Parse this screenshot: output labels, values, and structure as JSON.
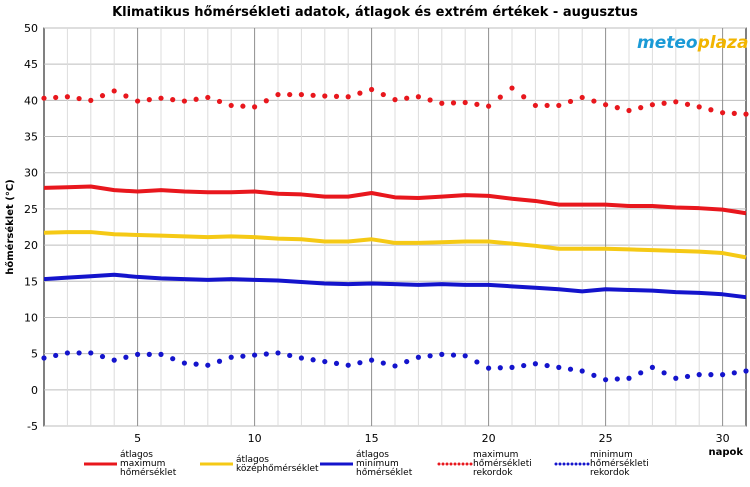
{
  "chart_data": {
    "type": "line",
    "title": "Klimatikus hőmérsékleti adatok, átlagok és extrém értékek - augusztus",
    "xlabel": "napok",
    "ylabel": "hőmérséklet (°C)",
    "xlim": [
      1,
      31
    ],
    "ylim": [
      -5,
      50
    ],
    "xticks": [
      5,
      10,
      15,
      20,
      25,
      30
    ],
    "yticks": [
      -5,
      0,
      5,
      10,
      15,
      20,
      25,
      30,
      35,
      40,
      45,
      50
    ],
    "grid": true,
    "legend_position": "bottom",
    "x": [
      1,
      2,
      3,
      4,
      5,
      6,
      7,
      8,
      9,
      10,
      11,
      12,
      13,
      14,
      15,
      16,
      17,
      18,
      19,
      20,
      21,
      22,
      23,
      24,
      25,
      26,
      27,
      28,
      29,
      30,
      31
    ],
    "series": [
      {
        "name": "átlagos maximum hőmérséklet",
        "legend_lines": [
          "átlagos",
          "maximum",
          "hőmérséklet"
        ],
        "style": "solid",
        "color": "#e8171d",
        "values": [
          27.9,
          28.0,
          28.1,
          27.6,
          27.4,
          27.6,
          27.4,
          27.3,
          27.3,
          27.4,
          27.1,
          27.0,
          26.7,
          26.7,
          27.2,
          26.6,
          26.5,
          26.7,
          26.9,
          26.8,
          26.4,
          26.1,
          25.6,
          25.6,
          25.6,
          25.4,
          25.4,
          25.2,
          25.1,
          24.9,
          24.4
        ]
      },
      {
        "name": "átlagos középhőmérséklet",
        "legend_lines": [
          "átlagos",
          "középhőmérséklet"
        ],
        "style": "solid",
        "color": "#f5c915",
        "values": [
          21.7,
          21.8,
          21.8,
          21.5,
          21.4,
          21.3,
          21.2,
          21.1,
          21.2,
          21.1,
          20.9,
          20.8,
          20.5,
          20.5,
          20.8,
          20.3,
          20.3,
          20.4,
          20.5,
          20.5,
          20.2,
          19.9,
          19.5,
          19.5,
          19.5,
          19.4,
          19.3,
          19.2,
          19.1,
          18.9,
          18.3
        ]
      },
      {
        "name": "átlagos minimum hőmérséklet",
        "legend_lines": [
          "átlagos",
          "minimum",
          "hőmérséklet"
        ],
        "style": "solid",
        "color": "#1414cc",
        "values": [
          15.3,
          15.5,
          15.7,
          15.9,
          15.6,
          15.4,
          15.3,
          15.2,
          15.3,
          15.2,
          15.1,
          14.9,
          14.7,
          14.6,
          14.7,
          14.6,
          14.5,
          14.6,
          14.5,
          14.5,
          14.3,
          14.1,
          13.9,
          13.6,
          13.9,
          13.8,
          13.7,
          13.5,
          13.4,
          13.2,
          12.8
        ]
      },
      {
        "name": "maximum hőmérsékleti rekordok",
        "legend_lines": [
          "maximum",
          "hőmérsékleti",
          "rekordok"
        ],
        "style": "dotted",
        "color": "#e8171d",
        "values": [
          40.3,
          40.5,
          40.0,
          41.3,
          39.9,
          40.3,
          39.9,
          40.4,
          39.3,
          39.1,
          40.8,
          40.8,
          40.6,
          40.5,
          41.5,
          40.1,
          40.5,
          39.6,
          39.7,
          39.2,
          41.7,
          39.3,
          39.3,
          40.4,
          39.4,
          38.6,
          39.4,
          39.8,
          39.1,
          38.3,
          38.1
        ]
      },
      {
        "name": "minimum hőmérsékleti rekordok",
        "legend_lines": [
          "minimum",
          "hőmérsékleti",
          "rekordok"
        ],
        "style": "dotted",
        "color": "#1414cc",
        "values": [
          4.4,
          5.1,
          5.1,
          4.1,
          4.9,
          4.9,
          3.7,
          3.4,
          4.5,
          4.8,
          5.1,
          4.4,
          3.9,
          3.4,
          4.1,
          3.3,
          4.5,
          4.9,
          4.7,
          3.0,
          3.1,
          3.6,
          3.1,
          2.6,
          1.4,
          1.6,
          3.1,
          1.6,
          2.1,
          2.1,
          2.6
        ]
      }
    ]
  },
  "logo": {
    "part1": "meteo",
    "part2": "plaza"
  }
}
